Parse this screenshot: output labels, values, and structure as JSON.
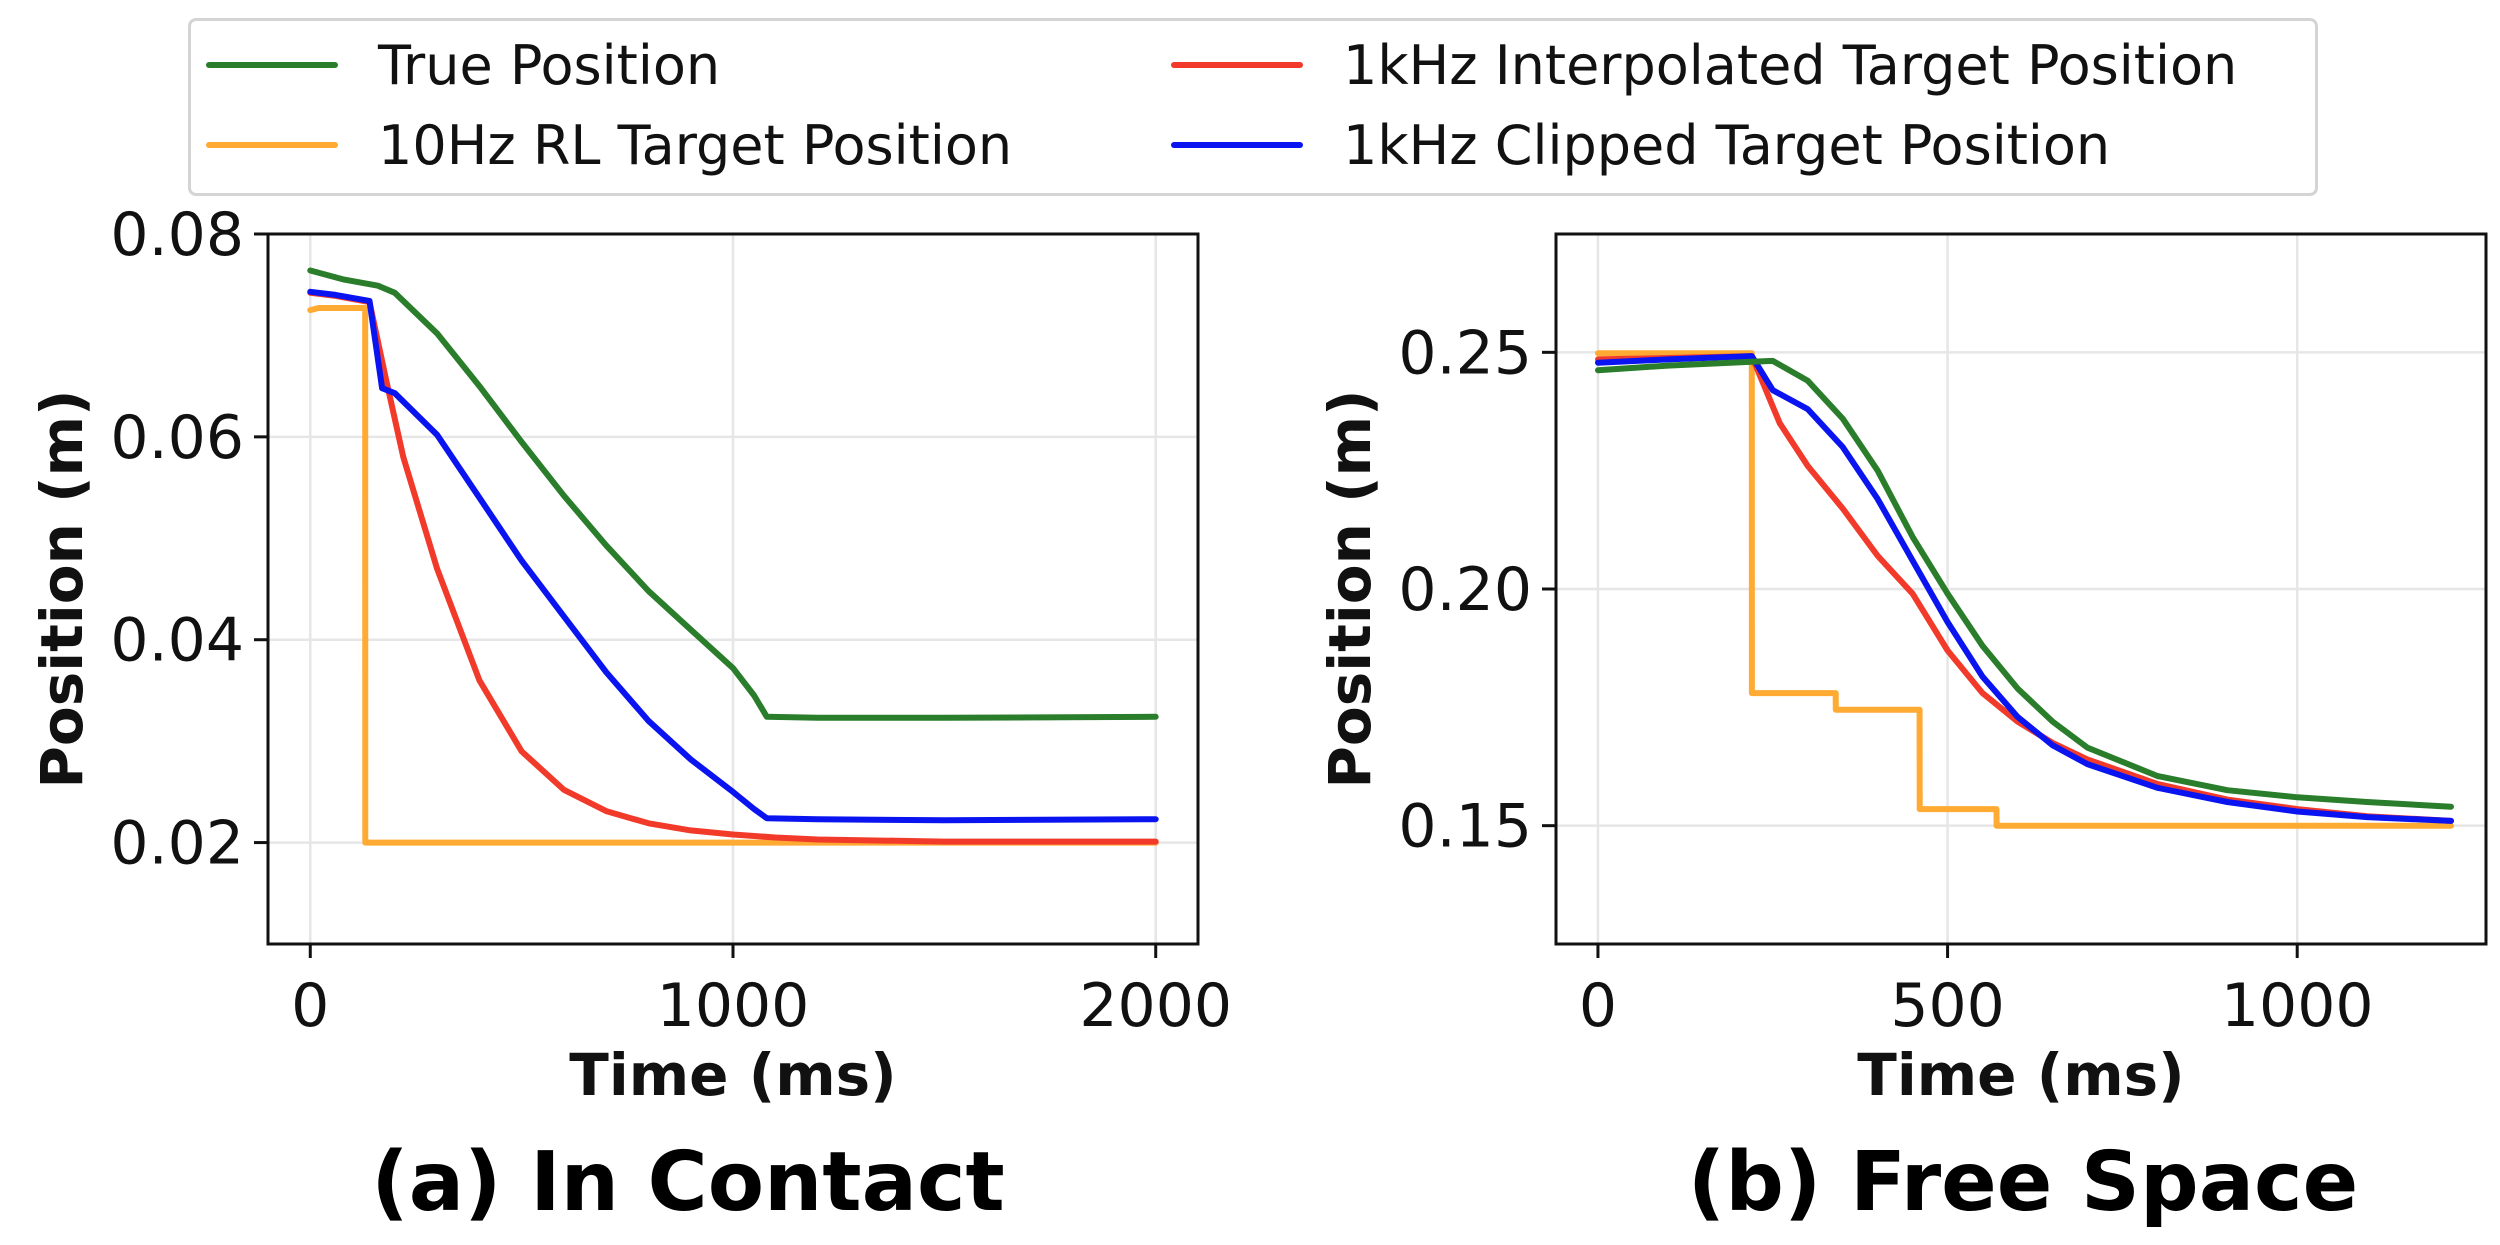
{
  "legend": {
    "items": [
      {
        "label": "True Position",
        "color": "#2a7d2a"
      },
      {
        "label": "1kHz Interpolated Target Position",
        "color": "#f23a2a"
      },
      {
        "label": "10Hz RL Target Position",
        "color": "#ffaa33"
      },
      {
        "label": "1kHz Clipped Target Position",
        "color": "#0a14f0"
      }
    ]
  },
  "chart_data": [
    {
      "type": "line",
      "caption": "(a) In Contact",
      "xlabel": "Time (ms)",
      "ylabel": "Position (m)",
      "xlim": [
        -100,
        2100
      ],
      "ylim": [
        0.01,
        0.08
      ],
      "xticks": [
        0,
        1000,
        2000
      ],
      "yticks": [
        0.02,
        0.04,
        0.06,
        0.08
      ],
      "xtick_labels": [
        "0",
        "1000",
        "2000"
      ],
      "ytick_labels": [
        "0.02",
        "0.04",
        "0.06",
        "0.08"
      ],
      "grid": true,
      "series": [
        {
          "name": "10Hz RL Target Position",
          "color": "#ffaa33",
          "x": [
            0,
            20,
            130,
            130.1,
            500,
            1000,
            1500,
            2000
          ],
          "y": [
            0.0725,
            0.0727,
            0.0727,
            0.02,
            0.02,
            0.02,
            0.02,
            0.02
          ]
        },
        {
          "name": "1kHz Interpolated Target Position",
          "color": "#f23a2a",
          "x": [
            0,
            60,
            140,
            180,
            220,
            300,
            400,
            500,
            600,
            700,
            800,
            900,
            1000,
            1100,
            1200,
            1500,
            2000
          ],
          "y": [
            0.0742,
            0.0739,
            0.0733,
            0.0655,
            0.058,
            0.047,
            0.036,
            0.029,
            0.0252,
            0.0231,
            0.0219,
            0.0212,
            0.0208,
            0.0205,
            0.0203,
            0.0201,
            0.0201
          ]
        },
        {
          "name": "1kHz Clipped Target Position",
          "color": "#0a14f0",
          "x": [
            0,
            60,
            140,
            170,
            200,
            300,
            400,
            500,
            600,
            700,
            800,
            900,
            1000,
            1050,
            1080,
            1200,
            1500,
            2000
          ],
          "y": [
            0.0743,
            0.074,
            0.0734,
            0.0648,
            0.0643,
            0.0602,
            0.054,
            0.0478,
            0.0423,
            0.0368,
            0.032,
            0.0282,
            0.025,
            0.0233,
            0.0224,
            0.0223,
            0.0222,
            0.0223
          ]
        },
        {
          "name": "True Position",
          "color": "#2a7d2a",
          "x": [
            0,
            80,
            160,
            200,
            300,
            400,
            500,
            600,
            700,
            800,
            900,
            1000,
            1050,
            1080,
            1200,
            1500,
            2000
          ],
          "y": [
            0.0764,
            0.0755,
            0.0749,
            0.0742,
            0.0702,
            0.065,
            0.0595,
            0.0542,
            0.0493,
            0.0448,
            0.041,
            0.0372,
            0.0345,
            0.0324,
            0.0323,
            0.0323,
            0.0324
          ]
        }
      ]
    },
    {
      "type": "line",
      "caption": "(b) Free Space",
      "xlabel": "Time (ms)",
      "ylabel": "Position (m)",
      "xlim": [
        -60,
        1270
      ],
      "ylim": [
        0.125,
        0.275
      ],
      "xticks": [
        0,
        500,
        1000
      ],
      "yticks": [
        0.15,
        0.2,
        0.25
      ],
      "xtick_labels": [
        "0",
        "500",
        "1000"
      ],
      "ytick_labels": [
        "0.15",
        "0.20",
        "0.25"
      ],
      "grid": true,
      "series": [
        {
          "name": "10Hz RL Target Position",
          "color": "#ffaa33",
          "x": [
            0,
            220,
            220.1,
            340,
            340.1,
            460,
            460.1,
            570,
            570.1,
            1220
          ],
          "y": [
            0.2498,
            0.2498,
            0.178,
            0.178,
            0.1745,
            0.1745,
            0.1535,
            0.1535,
            0.15,
            0.15
          ]
        },
        {
          "name": "1kHz Interpolated Target Position",
          "color": "#f23a2a",
          "x": [
            0,
            100,
            220,
            260,
            300,
            350,
            400,
            450,
            500,
            550,
            600,
            650,
            700,
            800,
            900,
            1000,
            1100,
            1220
          ],
          "y": [
            0.2485,
            0.2488,
            0.2492,
            0.235,
            0.226,
            0.217,
            0.207,
            0.199,
            0.187,
            0.178,
            0.172,
            0.1675,
            0.164,
            0.1588,
            0.1555,
            0.1535,
            0.152,
            0.151
          ]
        },
        {
          "name": "1kHz Clipped Target Position",
          "color": "#0a14f0",
          "x": [
            0,
            100,
            220,
            250,
            300,
            350,
            400,
            450,
            500,
            550,
            600,
            650,
            700,
            800,
            900,
            1000,
            1100,
            1220
          ],
          "y": [
            0.2478,
            0.2485,
            0.2492,
            0.242,
            0.238,
            0.23,
            0.219,
            0.206,
            0.193,
            0.1815,
            0.173,
            0.167,
            0.163,
            0.158,
            0.155,
            0.153,
            0.1518,
            0.151
          ]
        },
        {
          "name": "True Position",
          "color": "#2a7d2a",
          "x": [
            0,
            100,
            220,
            250,
            300,
            350,
            400,
            450,
            500,
            550,
            600,
            650,
            700,
            800,
            900,
            1000,
            1100,
            1220
          ],
          "y": [
            0.2462,
            0.2472,
            0.248,
            0.2482,
            0.244,
            0.236,
            0.225,
            0.211,
            0.199,
            0.188,
            0.179,
            0.172,
            0.1665,
            0.1605,
            0.1575,
            0.156,
            0.155,
            0.154
          ]
        }
      ]
    }
  ]
}
